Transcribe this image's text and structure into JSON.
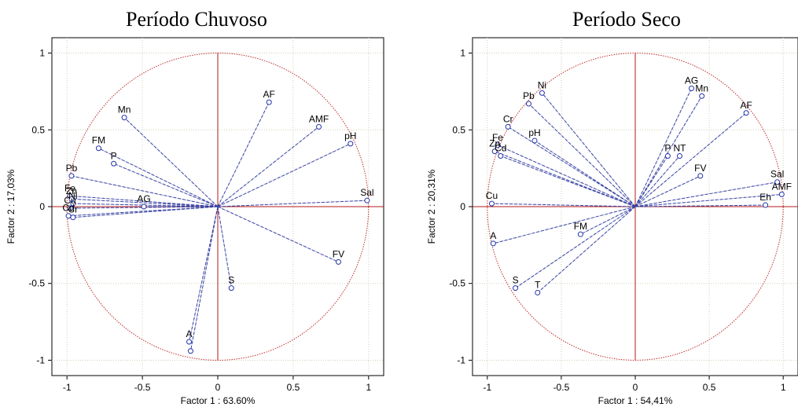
{
  "panels": [
    {
      "title": "Período Chuvoso",
      "type": "scatter",
      "xlabel": "Factor 1 : 63.60%",
      "ylabel": "Factor 2 : 17,03%",
      "xlim": [
        -1.1,
        1.1
      ],
      "ylim": [
        -1.1,
        1.1
      ],
      "xticks": [
        "-1",
        "-0.5",
        "0",
        "0.5",
        "1"
      ],
      "yticks": [
        "1",
        "0.5",
        "0",
        "-0.5",
        "-1"
      ],
      "points": [
        {
          "label": "AF",
          "x": 0.34,
          "y": 0.68
        },
        {
          "label": "AMF",
          "x": 0.67,
          "y": 0.52
        },
        {
          "label": "pH",
          "x": 0.88,
          "y": 0.41
        },
        {
          "label": "Sal",
          "x": 0.99,
          "y": 0.04
        },
        {
          "label": "FV",
          "x": 0.8,
          "y": -0.36
        },
        {
          "label": "S",
          "x": 0.09,
          "y": -0.53
        },
        {
          "label": "A",
          "x": -0.19,
          "y": -0.88
        },
        {
          "label": "",
          "x": -0.18,
          "y": -0.94
        },
        {
          "label": "Mn",
          "x": -0.62,
          "y": 0.58
        },
        {
          "label": "FM",
          "x": -0.79,
          "y": 0.38
        },
        {
          "label": "P",
          "x": -0.69,
          "y": 0.28
        },
        {
          "label": "Pb",
          "x": -0.97,
          "y": 0.2
        },
        {
          "label": "AG",
          "x": -0.49,
          "y": 0.0
        },
        {
          "label": "Fe",
          "x": -0.98,
          "y": 0.07
        },
        {
          "label": "Zn",
          "x": -0.97,
          "y": 0.05
        },
        {
          "label": "Ni",
          "x": -0.96,
          "y": 0.02
        },
        {
          "label": "Cu",
          "x": -0.98,
          "y": -0.01
        },
        {
          "label": "Cd",
          "x": -0.99,
          "y": -0.06
        },
        {
          "label": "Cr",
          "x": -0.96,
          "y": -0.07
        }
      ]
    },
    {
      "title": "Período Seco",
      "type": "scatter",
      "xlabel": "Factor 1 : 54,41%",
      "ylabel": "Factor 2 : 20,31%",
      "xlim": [
        -1.1,
        1.1
      ],
      "ylim": [
        -1.1,
        1.1
      ],
      "xticks": [
        "-1",
        "-0.5",
        "0",
        "0.5",
        "1"
      ],
      "yticks": [
        "1",
        "0.5",
        "0",
        "-0.5",
        "-1"
      ],
      "points": [
        {
          "label": "Ni",
          "x": -0.63,
          "y": 0.74
        },
        {
          "label": "Pb",
          "x": -0.72,
          "y": 0.67
        },
        {
          "label": "Cr",
          "x": -0.86,
          "y": 0.52
        },
        {
          "label": "pH",
          "x": -0.68,
          "y": 0.43
        },
        {
          "label": "Fe",
          "x": -0.93,
          "y": 0.4
        },
        {
          "label": "Zn",
          "x": -0.95,
          "y": 0.36
        },
        {
          "label": "Cd",
          "x": -0.91,
          "y": 0.33
        },
        {
          "label": "Cu",
          "x": -0.97,
          "y": 0.02
        },
        {
          "label": "A",
          "x": -0.96,
          "y": -0.24
        },
        {
          "label": "FM",
          "x": -0.37,
          "y": -0.18
        },
        {
          "label": "S",
          "x": -0.81,
          "y": -0.53
        },
        {
          "label": "T",
          "x": -0.66,
          "y": -0.56
        },
        {
          "label": "AG",
          "x": 0.38,
          "y": 0.77
        },
        {
          "label": "Mn",
          "x": 0.45,
          "y": 0.72
        },
        {
          "label": "AF",
          "x": 0.75,
          "y": 0.61
        },
        {
          "label": "P",
          "x": 0.22,
          "y": 0.33
        },
        {
          "label": "NT",
          "x": 0.3,
          "y": 0.33
        },
        {
          "label": "FV",
          "x": 0.44,
          "y": 0.2
        },
        {
          "label": "Sal",
          "x": 0.96,
          "y": 0.16
        },
        {
          "label": "AMF",
          "x": 0.99,
          "y": 0.08
        },
        {
          "label": "Eh",
          "x": 0.88,
          "y": 0.01
        }
      ]
    }
  ],
  "colors": {
    "circle": "#c03030",
    "axis": "#b01818",
    "vector": "#2233aa",
    "vector_solid": "#6a6aa0",
    "grid": "#cfcfb8"
  }
}
